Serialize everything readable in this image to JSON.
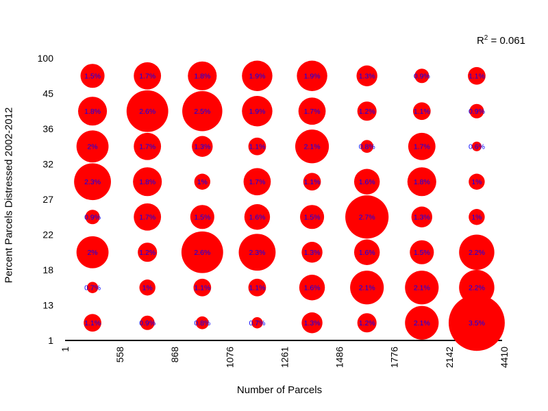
{
  "chart": {
    "xlabel": "Number of Parcels",
    "ylabel": "Percent Parcels Distressed 2002-2012",
    "annotation": {
      "base": "R",
      "sup": "2",
      "rest": " = 0.061"
    }
  },
  "chart_data": {
    "type": "scatter",
    "subtype": "bubble-grid",
    "title": "",
    "xlabel": "Number of Parcels",
    "ylabel": "Percent Parcels Distressed 2002-2012",
    "annotation": "R^2 = 0.061",
    "r_squared": 0.061,
    "grid_on": false,
    "bubble_color": "#ff0000",
    "label_color": "#0000ff",
    "axis_color": "#000000",
    "x_tick_labels": [
      "1",
      "558",
      "868",
      "1076",
      "1261",
      "1486",
      "1776",
      "2142",
      "4410"
    ],
    "y_tick_labels": [
      "100",
      "45",
      "36",
      "32",
      "27",
      "22",
      "18",
      "13",
      "1"
    ],
    "note": "Bubbles sit in the cells between consecutive x and y tick labels; value = percent label shown in each bubble; bubble radius is proportional to value.",
    "rows": [
      {
        "y_band": [
          "45",
          "100"
        ],
        "values_pct": [
          1.5,
          1.7,
          1.8,
          1.9,
          1.9,
          1.3,
          0.9,
          1.1
        ]
      },
      {
        "y_band": [
          "36",
          "45"
        ],
        "values_pct": [
          1.8,
          2.6,
          2.5,
          1.9,
          1.7,
          1.2,
          1.1,
          0.9
        ]
      },
      {
        "y_band": [
          "32",
          "36"
        ],
        "values_pct": [
          2,
          1.7,
          1.3,
          1.1,
          2.1,
          0.8,
          1.7,
          0.6
        ]
      },
      {
        "y_band": [
          "27",
          "32"
        ],
        "values_pct": [
          2.3,
          1.8,
          1,
          1.7,
          1.1,
          1.6,
          1.8,
          1
        ]
      },
      {
        "y_band": [
          "22",
          "27"
        ],
        "values_pct": [
          0.9,
          1.7,
          1.5,
          1.6,
          1.5,
          2.7,
          1.3,
          1
        ]
      },
      {
        "y_band": [
          "18",
          "22"
        ],
        "values_pct": [
          2,
          1.2,
          2.6,
          2.3,
          1.3,
          1.6,
          1.5,
          2.2
        ]
      },
      {
        "y_band": [
          "13",
          "18"
        ],
        "values_pct": [
          0.7,
          1,
          1.1,
          1.1,
          1.6,
          2.1,
          2.1,
          2.2
        ]
      },
      {
        "y_band": [
          "1",
          "13"
        ],
        "values_pct": [
          1.1,
          0.9,
          0.8,
          0.7,
          1.3,
          1.2,
          2.1,
          3.5
        ]
      }
    ]
  }
}
